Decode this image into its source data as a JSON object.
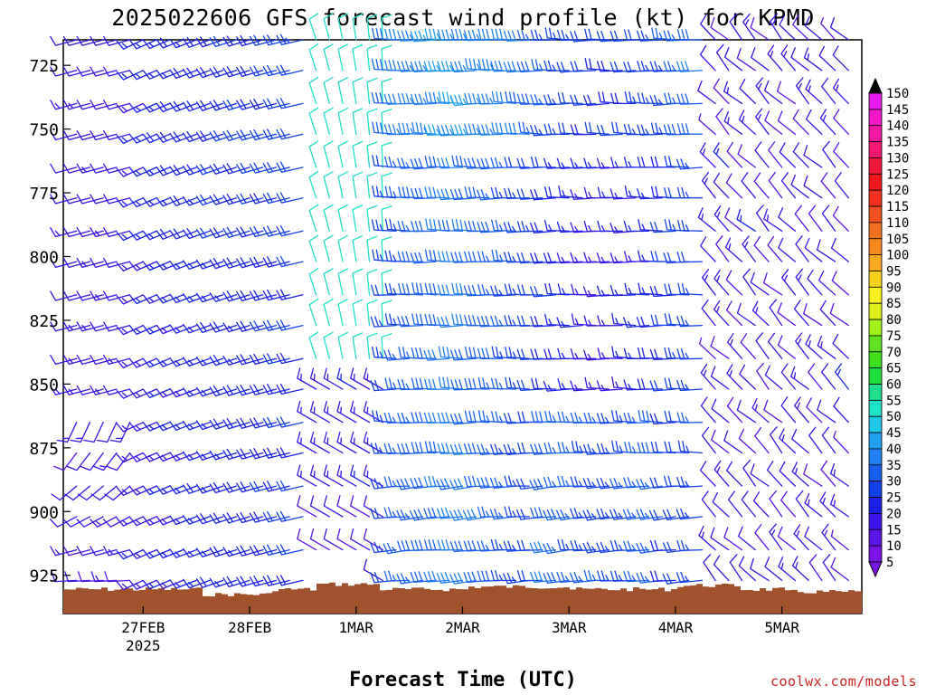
{
  "chart_data": {
    "type": "wind-barb profile",
    "title": "2025022606 GFS forecast wind profile (kt) for KPMD",
    "xlabel": "Forecast Time (UTC)",
    "ylabel": "",
    "y_scale": "inverted pressure (hPa), top 715 to bottom 940",
    "ylim": [
      940,
      715
    ],
    "y_ticks": [
      725,
      750,
      775,
      800,
      825,
      850,
      875,
      900,
      925
    ],
    "y_tick_labels": [
      "725",
      "750",
      "775",
      "800",
      "825",
      "850",
      "875",
      "900",
      "925"
    ],
    "x_ticks": [
      {
        "label": "27FEB",
        "sublabel": "2025"
      },
      {
        "label": "28FEB",
        "sublabel": ""
      },
      {
        "label": "1MAR",
        "sublabel": ""
      },
      {
        "label": "2MAR",
        "sublabel": ""
      },
      {
        "label": "3MAR",
        "sublabel": ""
      },
      {
        "label": "4MAR",
        "sublabel": ""
      },
      {
        "label": "5MAR",
        "sublabel": ""
      }
    ],
    "x_range_days": [
      26.25,
      33.75
    ],
    "barb_levels_hPa": [
      715,
      727,
      740,
      752,
      765,
      777,
      790,
      802,
      815,
      827,
      840,
      852,
      865,
      877,
      890,
      902,
      915,
      927
    ],
    "barb_times_per_day": 8,
    "colorbar": {
      "labels": [
        "5",
        "10",
        "15",
        "20",
        "25",
        "30",
        "35",
        "40",
        "45",
        "50",
        "55",
        "60",
        "65",
        "70",
        "75",
        "80",
        "85",
        "90",
        "95",
        "100",
        "105",
        "110",
        "115",
        "120",
        "125",
        "130",
        "135",
        "140",
        "145",
        "150"
      ],
      "colors": [
        "#7a14e6",
        "#5a14e6",
        "#3a14e6",
        "#1a20e6",
        "#1440e8",
        "#1a60f0",
        "#2080f0",
        "#20a0f0",
        "#20c8e8",
        "#20e0c8",
        "#20e090",
        "#20e040",
        "#40e020",
        "#60e020",
        "#a0f020",
        "#e0f020",
        "#f8f020",
        "#f8d020",
        "#f8a820",
        "#f88820",
        "#f07020",
        "#f05020",
        "#f03020",
        "#f01818",
        "#f01838",
        "#f01870",
        "#f018a0",
        "#f018c8",
        "#e818e8",
        "#000000"
      ]
    },
    "terrain_color": "#a0522d",
    "wind_regimes": [
      {
        "period": "26FEB12-27FEB00",
        "surface_to_800": "southwest 10-15kt",
        "above_800": "west 10-15kt"
      },
      {
        "period": "27FEB-28FEB12",
        "all_levels": "west-southwest 10-20kt"
      },
      {
        "period": "28FEB12-1MAR06",
        "above_850": "north 15-35kt",
        "below_850": "northwest 10-15kt"
      },
      {
        "period": "1MAR06-4MAR06",
        "all_levels": "west 20-40kt"
      },
      {
        "period": "4MAR06-5MAR18",
        "all_levels": "northwest 5-15kt"
      }
    ],
    "credit": "coolwx.com/models"
  }
}
